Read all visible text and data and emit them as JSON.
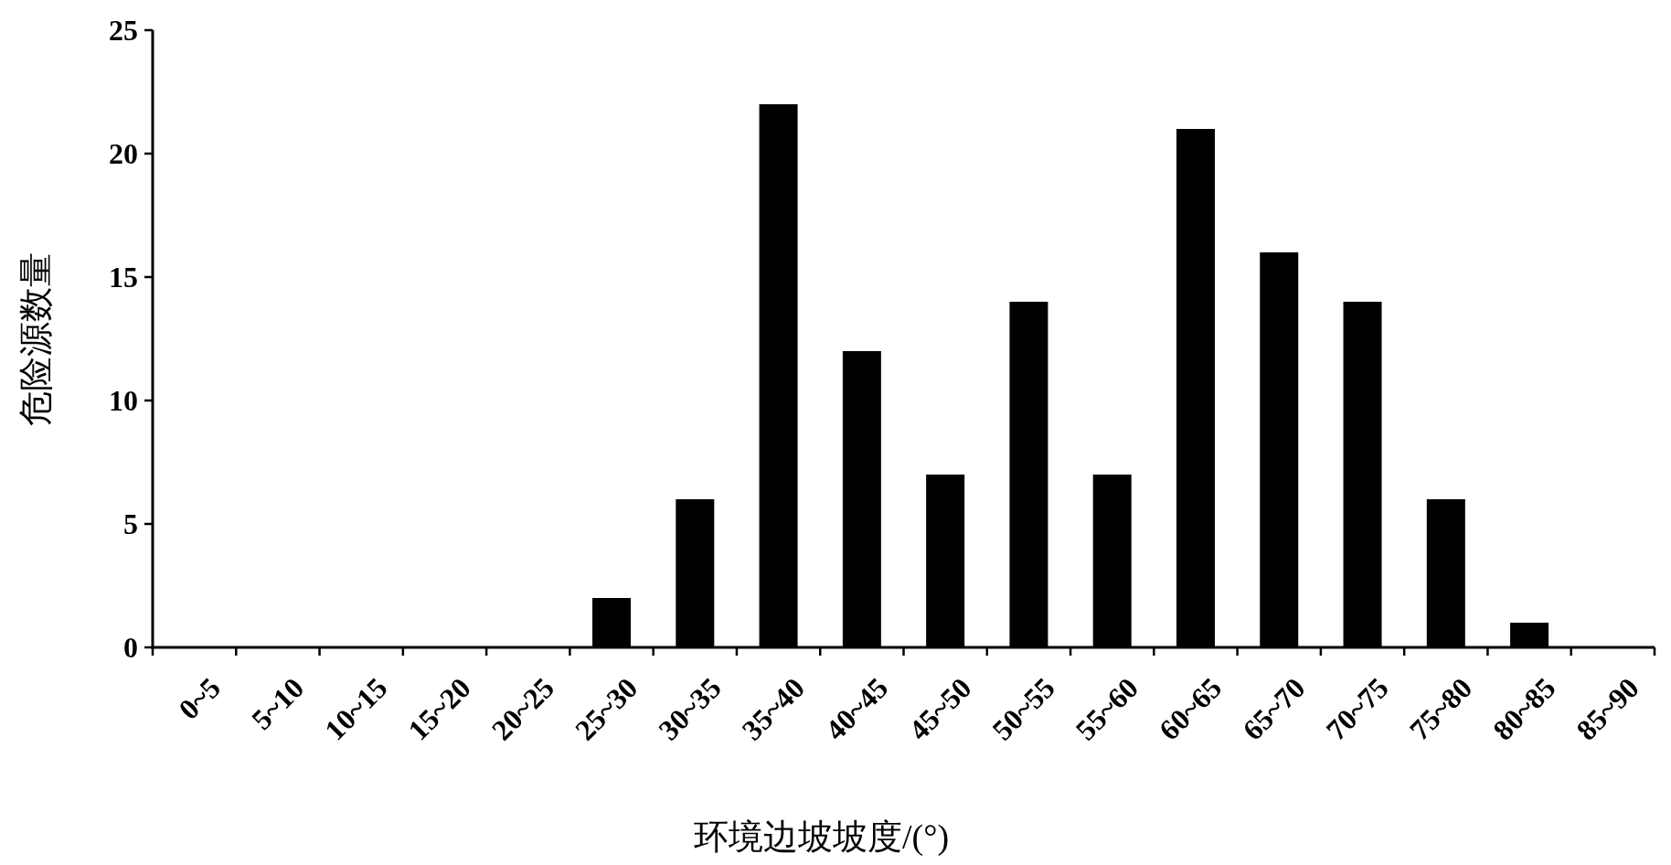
{
  "chart_data": {
    "type": "bar",
    "xlabel": "环境边坡坡度/(°)",
    "ylabel": "危险源数量",
    "categories": [
      "0~5",
      "5~10",
      "10~15",
      "15~20",
      "20~25",
      "25~30",
      "30~35",
      "35~40",
      "40~45",
      "45~50",
      "50~55",
      "55~60",
      "60~65",
      "65~70",
      "70~75",
      "75~80",
      "80~85",
      "85~90"
    ],
    "values": [
      0,
      0,
      0,
      0,
      0,
      2,
      6,
      22,
      12,
      7,
      14,
      7,
      21,
      16,
      14,
      6,
      1,
      0
    ],
    "color": "#000000",
    "ylim": [
      0,
      25
    ],
    "yticks": [
      0,
      5,
      10,
      15,
      20,
      25
    ],
    "grid": false
  }
}
